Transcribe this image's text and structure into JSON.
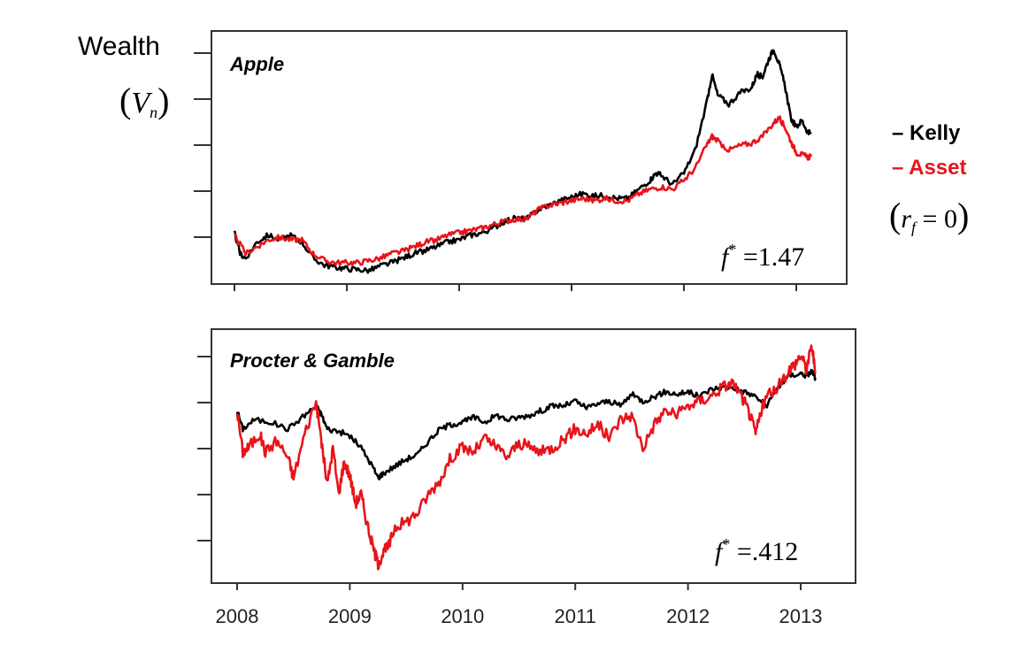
{
  "y_axis_title": "Wealth",
  "y_axis_symbol": "(V_n)",
  "legend": [
    {
      "label": "Kelly",
      "color": "#000000"
    },
    {
      "label": "Asset",
      "color": "#e8141b"
    }
  ],
  "rf_note": "(r_f = 0)",
  "x_tick_labels": [
    "2008",
    "2009",
    "2010",
    "2011",
    "2012",
    "2013"
  ],
  "chart_data": [
    {
      "type": "line",
      "title": "Apple",
      "annotation": "f* = 1.47",
      "x_range": [
        2008.0,
        2013.2
      ],
      "series": [
        {
          "name": "Kelly",
          "color": "#000000",
          "points": [
            [
              2008.0,
              0.11
            ],
            [
              2008.05,
              -0.35
            ],
            [
              2008.1,
              -0.45
            ],
            [
              2008.2,
              -0.1
            ],
            [
              2008.3,
              0.05
            ],
            [
              2008.4,
              -0.05
            ],
            [
              2008.5,
              0.05
            ],
            [
              2008.6,
              -0.1
            ],
            [
              2008.7,
              -0.45
            ],
            [
              2008.8,
              -0.6
            ],
            [
              2008.9,
              -0.65
            ],
            [
              2009.0,
              -0.68
            ],
            [
              2009.1,
              -0.7
            ],
            [
              2009.2,
              -0.72
            ],
            [
              2009.3,
              -0.62
            ],
            [
              2009.4,
              -0.55
            ],
            [
              2009.5,
              -0.45
            ],
            [
              2009.6,
              -0.35
            ],
            [
              2009.7,
              -0.28
            ],
            [
              2009.8,
              -0.2
            ],
            [
              2009.9,
              -0.1
            ],
            [
              2010.0,
              -0.05
            ],
            [
              2010.1,
              0.05
            ],
            [
              2010.2,
              0.1
            ],
            [
              2010.3,
              0.2
            ],
            [
              2010.4,
              0.35
            ],
            [
              2010.5,
              0.42
            ],
            [
              2010.6,
              0.4
            ],
            [
              2010.7,
              0.6
            ],
            [
              2010.8,
              0.7
            ],
            [
              2010.9,
              0.8
            ],
            [
              2011.0,
              0.88
            ],
            [
              2011.1,
              0.95
            ],
            [
              2011.2,
              0.9
            ],
            [
              2011.3,
              0.92
            ],
            [
              2011.4,
              0.85
            ],
            [
              2011.5,
              0.85
            ],
            [
              2011.6,
              1.05
            ],
            [
              2011.7,
              1.25
            ],
            [
              2011.75,
              1.4
            ],
            [
              2011.8,
              1.35
            ],
            [
              2011.9,
              1.15
            ],
            [
              2012.0,
              1.4
            ],
            [
              2012.1,
              1.9
            ],
            [
              2012.2,
              2.9
            ],
            [
              2012.25,
              3.55
            ],
            [
              2012.3,
              3.1
            ],
            [
              2012.4,
              2.9
            ],
            [
              2012.5,
              3.15
            ],
            [
              2012.6,
              3.25
            ],
            [
              2012.65,
              3.55
            ],
            [
              2012.7,
              3.5
            ],
            [
              2012.75,
              3.85
            ],
            [
              2012.8,
              4.1
            ],
            [
              2012.85,
              3.75
            ],
            [
              2012.9,
              3.3
            ],
            [
              2012.95,
              2.6
            ],
            [
              2013.0,
              2.4
            ],
            [
              2013.05,
              2.55
            ],
            [
              2013.1,
              2.3
            ],
            [
              2013.13,
              2.25
            ]
          ]
        },
        {
          "name": "Asset",
          "color": "#e8141b",
          "points": [
            [
              2008.0,
              0.05
            ],
            [
              2008.1,
              -0.35
            ],
            [
              2008.2,
              -0.2
            ],
            [
              2008.3,
              -0.05
            ],
            [
              2008.4,
              0.0
            ],
            [
              2008.5,
              -0.05
            ],
            [
              2008.6,
              -0.05
            ],
            [
              2008.7,
              -0.35
            ],
            [
              2008.8,
              -0.5
            ],
            [
              2008.9,
              -0.55
            ],
            [
              2009.0,
              -0.55
            ],
            [
              2009.1,
              -0.55
            ],
            [
              2009.2,
              -0.5
            ],
            [
              2009.3,
              -0.45
            ],
            [
              2009.4,
              -0.35
            ],
            [
              2009.5,
              -0.3
            ],
            [
              2009.6,
              -0.2
            ],
            [
              2009.7,
              -0.1
            ],
            [
              2009.8,
              -0.05
            ],
            [
              2009.9,
              0.05
            ],
            [
              2010.0,
              0.1
            ],
            [
              2010.1,
              0.15
            ],
            [
              2010.2,
              0.2
            ],
            [
              2010.3,
              0.28
            ],
            [
              2010.4,
              0.35
            ],
            [
              2010.5,
              0.4
            ],
            [
              2010.6,
              0.4
            ],
            [
              2010.7,
              0.6
            ],
            [
              2010.8,
              0.7
            ],
            [
              2010.9,
              0.75
            ],
            [
              2011.0,
              0.8
            ],
            [
              2011.1,
              0.85
            ],
            [
              2011.2,
              0.8
            ],
            [
              2011.3,
              0.85
            ],
            [
              2011.4,
              0.8
            ],
            [
              2011.5,
              0.8
            ],
            [
              2011.6,
              0.95
            ],
            [
              2011.7,
              1.05
            ],
            [
              2011.8,
              1.1
            ],
            [
              2011.9,
              1.05
            ],
            [
              2012.0,
              1.25
            ],
            [
              2012.1,
              1.5
            ],
            [
              2012.2,
              2.0
            ],
            [
              2012.25,
              2.2
            ],
            [
              2012.3,
              2.1
            ],
            [
              2012.4,
              1.9
            ],
            [
              2012.5,
              2.0
            ],
            [
              2012.6,
              2.05
            ],
            [
              2012.7,
              2.2
            ],
            [
              2012.8,
              2.5
            ],
            [
              2012.85,
              2.6
            ],
            [
              2012.9,
              2.4
            ],
            [
              2012.95,
              2.1
            ],
            [
              2013.0,
              1.85
            ],
            [
              2013.05,
              1.8
            ],
            [
              2013.1,
              1.75
            ],
            [
              2013.13,
              1.75
            ]
          ]
        }
      ]
    },
    {
      "type": "line",
      "title": "Procter & Gamble",
      "annotation": "f* = .412",
      "x_range": [
        2008.0,
        2013.2
      ],
      "series": [
        {
          "name": "Kelly",
          "color": "#000000",
          "points": [
            [
              2008.0,
              3.0
            ],
            [
              2008.05,
              2.6
            ],
            [
              2008.15,
              2.8
            ],
            [
              2008.3,
              2.75
            ],
            [
              2008.45,
              2.6
            ],
            [
              2008.6,
              2.9
            ],
            [
              2008.7,
              3.1
            ],
            [
              2008.75,
              2.9
            ],
            [
              2008.8,
              2.6
            ],
            [
              2008.9,
              2.55
            ],
            [
              2009.0,
              2.45
            ],
            [
              2009.1,
              2.2
            ],
            [
              2009.2,
              1.8
            ],
            [
              2009.25,
              1.55
            ],
            [
              2009.3,
              1.65
            ],
            [
              2009.4,
              1.8
            ],
            [
              2009.5,
              1.95
            ],
            [
              2009.6,
              2.05
            ],
            [
              2009.7,
              2.35
            ],
            [
              2009.8,
              2.6
            ],
            [
              2009.9,
              2.7
            ],
            [
              2010.0,
              2.75
            ],
            [
              2010.1,
              2.85
            ],
            [
              2010.2,
              2.75
            ],
            [
              2010.3,
              2.9
            ],
            [
              2010.4,
              2.8
            ],
            [
              2010.5,
              2.85
            ],
            [
              2010.6,
              2.9
            ],
            [
              2010.7,
              3.0
            ],
            [
              2010.8,
              3.1
            ],
            [
              2010.9,
              3.1
            ],
            [
              2011.0,
              3.2
            ],
            [
              2011.1,
              3.05
            ],
            [
              2011.2,
              3.15
            ],
            [
              2011.3,
              3.2
            ],
            [
              2011.4,
              3.1
            ],
            [
              2011.5,
              3.35
            ],
            [
              2011.6,
              3.2
            ],
            [
              2011.7,
              3.3
            ],
            [
              2011.8,
              3.4
            ],
            [
              2011.9,
              3.35
            ],
            [
              2012.0,
              3.4
            ],
            [
              2012.1,
              3.3
            ],
            [
              2012.2,
              3.45
            ],
            [
              2012.3,
              3.5
            ],
            [
              2012.4,
              3.5
            ],
            [
              2012.5,
              3.4
            ],
            [
              2012.6,
              3.3
            ],
            [
              2012.7,
              3.1
            ],
            [
              2012.8,
              3.5
            ],
            [
              2012.9,
              3.75
            ],
            [
              2013.0,
              3.8
            ],
            [
              2013.05,
              3.75
            ],
            [
              2013.1,
              3.85
            ],
            [
              2013.13,
              3.7
            ]
          ]
        },
        {
          "name": "Asset",
          "color": "#e8141b",
          "points": [
            [
              2008.0,
              3.0
            ],
            [
              2008.05,
              2.1
            ],
            [
              2008.1,
              2.2
            ],
            [
              2008.2,
              2.5
            ],
            [
              2008.25,
              2.1
            ],
            [
              2008.35,
              2.35
            ],
            [
              2008.45,
              2.0
            ],
            [
              2008.5,
              1.55
            ],
            [
              2008.6,
              2.5
            ],
            [
              2008.7,
              3.2
            ],
            [
              2008.75,
              2.3
            ],
            [
              2008.8,
              1.4
            ],
            [
              2008.85,
              2.2
            ],
            [
              2008.9,
              1.2
            ],
            [
              2008.95,
              1.9
            ],
            [
              2009.0,
              1.6
            ],
            [
              2009.05,
              1.0
            ],
            [
              2009.1,
              1.2
            ],
            [
              2009.15,
              0.6
            ],
            [
              2009.2,
              0.1
            ],
            [
              2009.25,
              -0.3
            ],
            [
              2009.3,
              -0.05
            ],
            [
              2009.35,
              0.1
            ],
            [
              2009.4,
              0.5
            ],
            [
              2009.5,
              0.6
            ],
            [
              2009.6,
              0.8
            ],
            [
              2009.7,
              1.2
            ],
            [
              2009.8,
              1.5
            ],
            [
              2009.9,
              2.0
            ],
            [
              2010.0,
              2.2
            ],
            [
              2010.1,
              2.1
            ],
            [
              2010.2,
              2.4
            ],
            [
              2010.3,
              2.2
            ],
            [
              2010.4,
              2.0
            ],
            [
              2010.5,
              2.3
            ],
            [
              2010.6,
              2.2
            ],
            [
              2010.7,
              2.1
            ],
            [
              2010.8,
              2.2
            ],
            [
              2010.9,
              2.4
            ],
            [
              2011.0,
              2.6
            ],
            [
              2011.1,
              2.5
            ],
            [
              2011.2,
              2.7
            ],
            [
              2011.3,
              2.4
            ],
            [
              2011.4,
              2.8
            ],
            [
              2011.5,
              2.9
            ],
            [
              2011.6,
              2.2
            ],
            [
              2011.7,
              2.7
            ],
            [
              2011.8,
              3.0
            ],
            [
              2011.9,
              2.9
            ],
            [
              2012.0,
              3.1
            ],
            [
              2012.1,
              3.2
            ],
            [
              2012.2,
              3.3
            ],
            [
              2012.3,
              3.5
            ],
            [
              2012.4,
              3.6
            ],
            [
              2012.5,
              3.2
            ],
            [
              2012.55,
              2.9
            ],
            [
              2012.6,
              2.5
            ],
            [
              2012.65,
              3.0
            ],
            [
              2012.7,
              3.3
            ],
            [
              2012.8,
              3.5
            ],
            [
              2012.9,
              3.9
            ],
            [
              2012.95,
              4.0
            ],
            [
              2013.0,
              4.2
            ],
            [
              2013.05,
              3.9
            ],
            [
              2013.1,
              4.4
            ],
            [
              2013.13,
              3.8
            ]
          ]
        }
      ]
    }
  ]
}
